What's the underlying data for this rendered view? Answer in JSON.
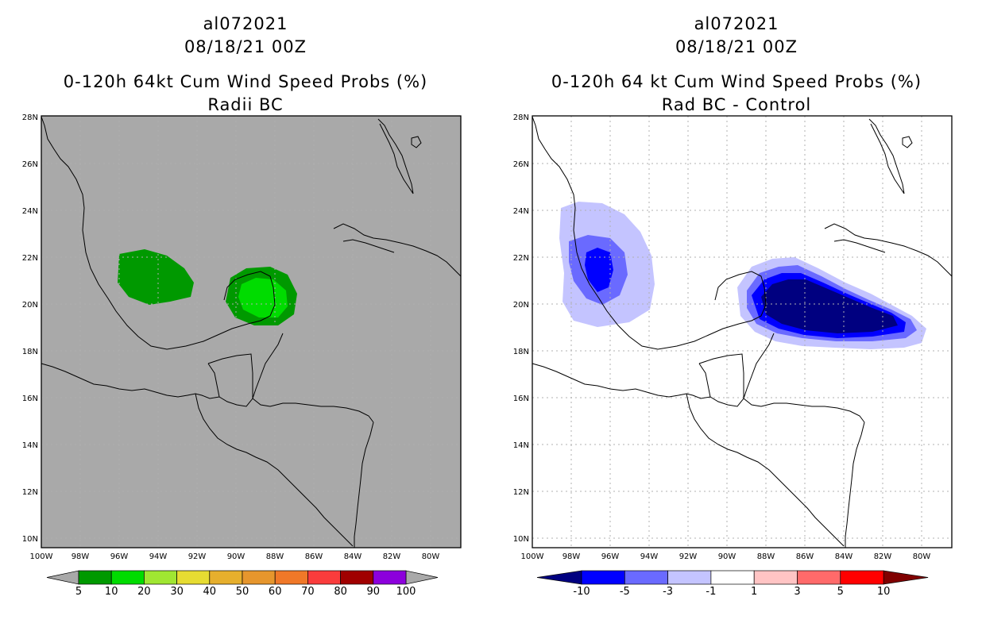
{
  "left_panel": {
    "storm_id": "al072021",
    "date": "08/18/21 00Z",
    "title": "0-120h 64kt Cum Wind Speed Probs (%)",
    "subtitle": "Radii BC",
    "background_color": "#a9a9a9",
    "colorbar": {
      "labels": [
        "5",
        "10",
        "20",
        "30",
        "40",
        "50",
        "60",
        "70",
        "80",
        "90",
        "100"
      ],
      "colors": [
        "#009900",
        "#00dc00",
        "#a0e632",
        "#e6dc32",
        "#e6af2d",
        "#e6962d",
        "#f07828",
        "#fa3c3c",
        "#a00000",
        "#8c00dc"
      ]
    }
  },
  "right_panel": {
    "storm_id": "al072021",
    "date": "08/18/21 00Z",
    "title": "0-120h 64 kt Cum Wind Speed Probs (%)",
    "subtitle": "Rad BC - Control",
    "background_color": "#ffffff",
    "colorbar": {
      "labels": [
        "-10",
        "-5",
        "-3",
        "-1",
        "1",
        "3",
        "5",
        "10"
      ],
      "colors": [
        "#000080",
        "#0000ff",
        "#6a6aff",
        "#c4c4ff",
        "#ffffff",
        "#ffc4c4",
        "#ff6a6a",
        "#ff0000",
        "#800000"
      ]
    }
  },
  "map": {
    "lat_labels": [
      "28N",
      "26N",
      "24N",
      "22N",
      "20N",
      "18N",
      "16N",
      "14N",
      "12N",
      "10N"
    ],
    "lon_labels": [
      "100W",
      "98W",
      "96W",
      "94W",
      "92W",
      "90W",
      "88W",
      "86W",
      "84W",
      "82W",
      "80W"
    ]
  }
}
